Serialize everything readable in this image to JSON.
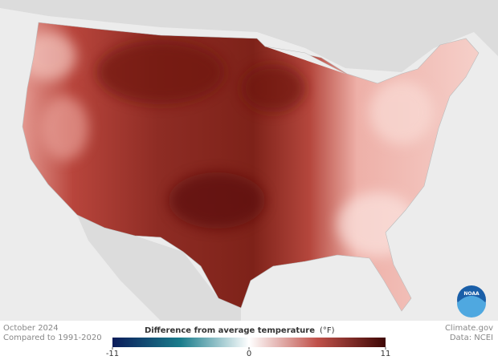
{
  "map": {
    "date": "October 2024",
    "baseline": "Compared to 1991-2020",
    "credit": "Climate.gov",
    "source": "Data: NCEI",
    "logo": "NOAA"
  },
  "legend": {
    "title": "Difference from average temperature",
    "unit": "(°F)",
    "min": -11,
    "max": 11,
    "ticks": [
      -11,
      0,
      11
    ]
  }
}
